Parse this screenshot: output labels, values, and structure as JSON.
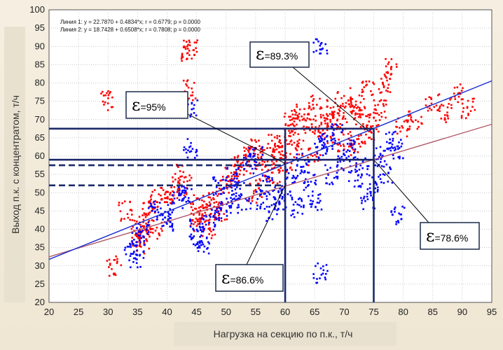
{
  "chart_data": {
    "type": "scatter",
    "xlabel": "Нагрузка на секцию по п.к., т/ч",
    "ylabel": "Выход п.к. с концентратом, т/ч",
    "xlim": [
      20,
      95
    ],
    "ylim": [
      20,
      100
    ],
    "x_ticks": [
      20,
      25,
      30,
      35,
      40,
      45,
      50,
      55,
      60,
      65,
      70,
      75,
      80,
      85,
      90,
      95
    ],
    "y_ticks": [
      20,
      25,
      30,
      35,
      40,
      45,
      50,
      55,
      60,
      65,
      70,
      75,
      80,
      85,
      90,
      95,
      100
    ],
    "grid": true,
    "legend": [
      "Линия 1: y = 22.7870 + 0.4834*x; r = 0.6779; p = 0.0000",
      "Линия 2: y = 18.7428 + 0.6508*x; r = 0.7808; p = 0.0000"
    ],
    "series": [
      {
        "color": "#ff0000",
        "regression": {
          "intercept": 22.787,
          "slope": 0.4834,
          "color": "#b05a6a"
        },
        "points": [
          [
            35,
            38
          ],
          [
            35.5,
            40
          ],
          [
            36,
            36
          ],
          [
            36.5,
            42
          ],
          [
            37,
            45
          ],
          [
            38,
            48
          ],
          [
            40,
            50
          ],
          [
            41,
            49
          ],
          [
            42,
            55
          ],
          [
            43,
            52
          ],
          [
            43.5,
            88
          ],
          [
            44,
            90
          ],
          [
            44,
            78
          ],
          [
            45,
            47
          ],
          [
            46,
            44
          ],
          [
            47,
            46
          ],
          [
            48,
            48
          ],
          [
            49,
            45
          ],
          [
            50,
            52
          ],
          [
            51,
            55
          ],
          [
            52,
            57
          ],
          [
            53,
            58
          ],
          [
            54,
            60
          ],
          [
            55,
            62
          ],
          [
            56,
            56
          ],
          [
            57,
            60
          ],
          [
            58,
            64
          ],
          [
            59,
            61
          ],
          [
            60,
            66
          ],
          [
            61,
            70
          ],
          [
            62,
            68
          ],
          [
            63,
            72
          ],
          [
            64,
            69
          ],
          [
            65,
            74
          ],
          [
            66,
            67
          ],
          [
            67,
            71
          ],
          [
            68,
            73
          ],
          [
            69,
            70
          ],
          [
            70,
            76
          ],
          [
            71,
            72
          ],
          [
            72,
            74
          ],
          [
            73,
            71
          ],
          [
            74,
            78
          ],
          [
            75,
            69
          ],
          [
            76,
            73
          ],
          [
            77,
            80
          ],
          [
            78,
            84
          ],
          [
            80,
            68
          ],
          [
            82,
            70
          ],
          [
            85,
            75
          ],
          [
            87,
            72
          ],
          [
            89,
            77
          ],
          [
            91,
            73
          ],
          [
            33,
            45
          ],
          [
            31,
            30
          ],
          [
            30,
            75
          ],
          [
            38,
            40
          ],
          [
            45,
            42
          ],
          [
            47,
            40
          ],
          [
            55,
            50
          ],
          [
            58,
            55
          ],
          [
            60,
            58
          ],
          [
            62,
            62
          ],
          [
            65,
            60
          ],
          [
            68,
            66
          ],
          [
            70,
            64
          ],
          [
            72,
            63
          ],
          [
            74,
            66
          ]
        ]
      },
      {
        "color": "#0000ff",
        "regression": {
          "intercept": 18.7428,
          "slope": 0.6508,
          "color": "#1a2fd0"
        },
        "points": [
          [
            34,
            34
          ],
          [
            35,
            38
          ],
          [
            36,
            40
          ],
          [
            38,
            45
          ],
          [
            40,
            42
          ],
          [
            42,
            48
          ],
          [
            43,
            50
          ],
          [
            44,
            73
          ],
          [
            44,
            62
          ],
          [
            45,
            40
          ],
          [
            46,
            36
          ],
          [
            47,
            42
          ],
          [
            48,
            44
          ],
          [
            49,
            52
          ],
          [
            50,
            46
          ],
          [
            51,
            55
          ],
          [
            52,
            50
          ],
          [
            53,
            47
          ],
          [
            54,
            58
          ],
          [
            55,
            60
          ],
          [
            56,
            48
          ],
          [
            57,
            52
          ],
          [
            58,
            45
          ],
          [
            59,
            50
          ],
          [
            60,
            48
          ],
          [
            61,
            55
          ],
          [
            62,
            46
          ],
          [
            63,
            58
          ],
          [
            64,
            53
          ],
          [
            65,
            47
          ],
          [
            66,
            28
          ],
          [
            66,
            62
          ],
          [
            67,
            64
          ],
          [
            68,
            55
          ],
          [
            69,
            66
          ],
          [
            70,
            58
          ],
          [
            71,
            62
          ],
          [
            72,
            54
          ],
          [
            73,
            57
          ],
          [
            74,
            48
          ],
          [
            75,
            52
          ],
          [
            76,
            60
          ],
          [
            77,
            55
          ],
          [
            78,
            64
          ],
          [
            79,
            62
          ],
          [
            79,
            44
          ],
          [
            66,
            90
          ],
          [
            35,
            32
          ],
          [
            40,
            44
          ],
          [
            45,
            38
          ]
        ]
      }
    ],
    "callouts": [
      {
        "symbol": "ε",
        "label": "=95%",
        "target": [
          60,
          58
        ]
      },
      {
        "symbol": "ε",
        "label": "=89.3%",
        "target": [
          74,
          67
        ]
      },
      {
        "symbol": "ε",
        "label": "=78.6%",
        "target": [
          75,
          59
        ]
      },
      {
        "symbol": "ε",
        "label": "=86.6%",
        "target": [
          60,
          52
        ]
      }
    ],
    "reference_lines": {
      "vertical": [
        60,
        75
      ],
      "horizontal_solid": [
        67.5,
        59
      ],
      "horizontal_dashed": [
        57.5,
        52
      ],
      "color": "#1b2a6b"
    }
  }
}
